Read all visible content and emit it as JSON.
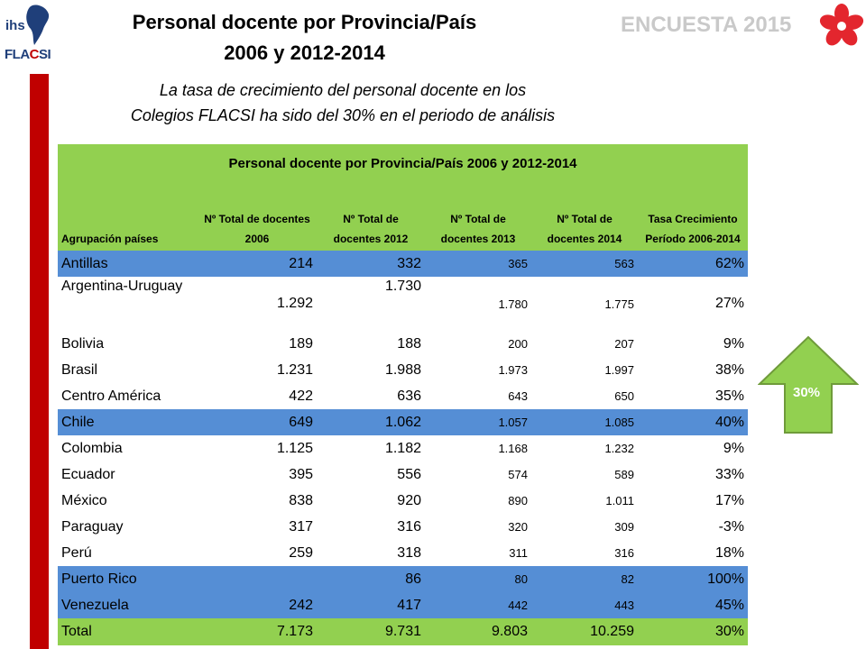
{
  "logo": {
    "ihs": "ihs",
    "flacsi_prefix": "FLA",
    "flacsi_red": "C",
    "flacsi_suffix": "SI"
  },
  "header": {
    "title_line1": "Personal docente por Provincia/País",
    "title_line2": "2006 y 2012-2014",
    "survey_label": "ENCUESTA 2015",
    "subtitle_line1": "La tasa de crecimiento del personal docente en los",
    "subtitle_line2": "Colegios FLACSI ha sido del 30% en el periodo de análisis"
  },
  "table": {
    "caption": "Personal docente por Provincia/País 2006 y 2012-2014",
    "headers": [
      "Agrupación países",
      "Nº Total de docentes 2006",
      "Nº Total de docentes 2012",
      "Nº Total de docentes 2013",
      "Nº Total de docentes 2014",
      "Tasa Crecimiento Período 2006-2014"
    ],
    "rows": [
      {
        "name": "Antillas",
        "y2006": "214",
        "y2012": "332",
        "y2013": "365",
        "y2014": "563",
        "rate": "62%"
      },
      {
        "name": "Argentina-Uruguay",
        "y2006": "1.292",
        "y2012": "1.730",
        "y2013": "1.780",
        "y2014": "1.775",
        "rate": "27%"
      },
      {
        "name": "Bolivia",
        "y2006": "189",
        "y2012": "188",
        "y2013": "200",
        "y2014": "207",
        "rate": "9%"
      },
      {
        "name": "Brasil",
        "y2006": "1.231",
        "y2012": "1.988",
        "y2013": "1.973",
        "y2014": "1.997",
        "rate": "38%"
      },
      {
        "name": "Centro América",
        "y2006": "422",
        "y2012": "636",
        "y2013": "643",
        "y2014": "650",
        "rate": "35%"
      },
      {
        "name": "Chile",
        "y2006": "649",
        "y2012": "1.062",
        "y2013": "1.057",
        "y2014": "1.085",
        "rate": "40%"
      },
      {
        "name": "Colombia",
        "y2006": "1.125",
        "y2012": "1.182",
        "y2013": "1.168",
        "y2014": "1.232",
        "rate": "9%"
      },
      {
        "name": "Ecuador",
        "y2006": "395",
        "y2012": "556",
        "y2013": "574",
        "y2014": "589",
        "rate": "33%"
      },
      {
        "name": "México",
        "y2006": "838",
        "y2012": "920",
        "y2013": "890",
        "y2014": "1.011",
        "rate": "17%"
      },
      {
        "name": "Paraguay",
        "y2006": "317",
        "y2012": "316",
        "y2013": "320",
        "y2014": "309",
        "rate": "-3%"
      },
      {
        "name": "Perú",
        "y2006": "259",
        "y2012": "318",
        "y2013": "311",
        "y2014": "316",
        "rate": "18%"
      },
      {
        "name": "Puerto Rico",
        "y2006": "",
        "y2012": "86",
        "y2013": "80",
        "y2014": "82",
        "rate": "100%"
      },
      {
        "name": "Venezuela",
        "y2006": "242",
        "y2012": "417",
        "y2013": "442",
        "y2014": "443",
        "rate": "45%"
      }
    ],
    "total": {
      "name": "Total",
      "y2006": "7.173",
      "y2012": "9.731",
      "y2013": "9.803",
      "y2014": "10.259",
      "rate": "30%"
    }
  },
  "growth_arrow": {
    "label": "30%",
    "color": "#92d050"
  },
  "colors": {
    "green": "#92d050",
    "blue": "#558ed5",
    "red": "#c00000",
    "survey_gray": "#c9c9c9"
  },
  "icons": {
    "logo": "ihs-flacsi-logo",
    "flower": "red-flower-icon",
    "arrow": "up-arrow-icon"
  }
}
